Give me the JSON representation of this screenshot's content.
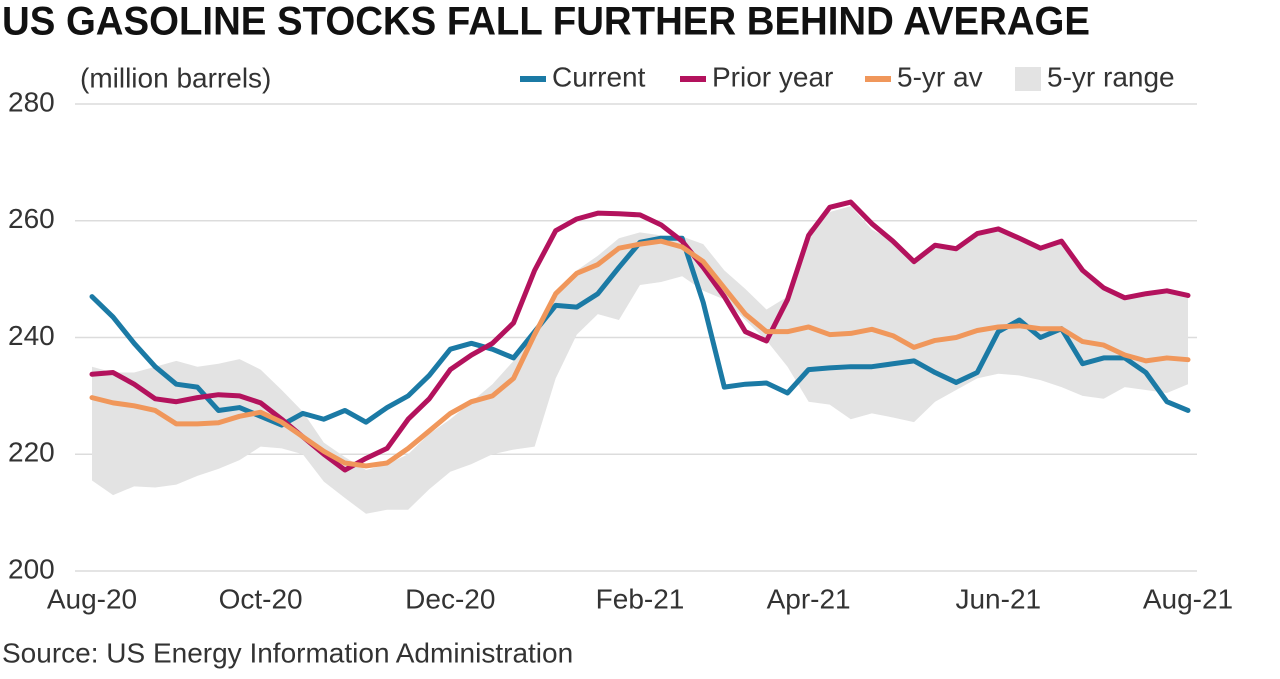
{
  "chart_data": {
    "type": "line",
    "title": "US GASOLINE STOCKS FALL FURTHER BEHIND AVERAGE",
    "y_label": "(million barrels)",
    "source": "Source: US Energy Information Administration",
    "categories": [
      "Aug-20",
      null,
      null,
      null,
      null,
      null,
      null,
      null,
      "Oct-20",
      null,
      null,
      null,
      null,
      null,
      null,
      null,
      null,
      "Dec-20",
      null,
      null,
      null,
      null,
      null,
      null,
      null,
      null,
      "Feb-21",
      null,
      null,
      null,
      null,
      null,
      null,
      null,
      "Apr-21",
      null,
      null,
      null,
      null,
      null,
      null,
      null,
      null,
      "Jun-21",
      null,
      null,
      null,
      null,
      null,
      null,
      null,
      null,
      "Aug-21"
    ],
    "ylim": [
      200,
      280
    ],
    "yticks": [
      200,
      220,
      240,
      260,
      280
    ],
    "grid": true,
    "legend": "top-right",
    "series": [
      {
        "name": "Current",
        "color": "#1b7aa5",
        "values": [
          247,
          243.5,
          239,
          235,
          232,
          231.5,
          227.5,
          228,
          226.5,
          225,
          227,
          226,
          227.5,
          225.5,
          228,
          230,
          233.5,
          238,
          239,
          238,
          236.5,
          241,
          245.5,
          245.2,
          247.5,
          252,
          256.3,
          257,
          257,
          246,
          231.5,
          232,
          232.2,
          230.5,
          234.5,
          234.8,
          235,
          235,
          235.5,
          236,
          234,
          232.3,
          234,
          241,
          243,
          240,
          241.5,
          235.5,
          236.5,
          236.5,
          234,
          229,
          227.5
        ]
      },
      {
        "name": "Prior year",
        "color": "#b3125d",
        "values": [
          233.7,
          234,
          232,
          229.5,
          229,
          229.7,
          230.2,
          230,
          228.8,
          226,
          223,
          220,
          217.3,
          219.3,
          221,
          226,
          229.5,
          234.5,
          237,
          239,
          242.5,
          251.5,
          258.3,
          260.3,
          261.3,
          261.2,
          261,
          259.3,
          256.5,
          252,
          247,
          241,
          239.4,
          246.5,
          257.5,
          262.3,
          263.2,
          259.5,
          256.5,
          253,
          255.8,
          255.2,
          257.8,
          258.6,
          257,
          255.3,
          256.5,
          251.5,
          248.5,
          246.8,
          247.5,
          248,
          247.2
        ]
      },
      {
        "name": "5-yr av",
        "color": "#f0975b",
        "values": [
          229.7,
          228.8,
          228.3,
          227.5,
          225.2,
          225.2,
          225.4,
          226.5,
          227.2,
          225.5,
          223,
          220.5,
          218.5,
          218,
          218.5,
          221,
          224,
          227,
          229,
          230,
          233,
          240.5,
          247.5,
          251,
          252.5,
          255.3,
          256,
          256.5,
          255.5,
          253,
          248.5,
          244,
          241,
          241,
          241.8,
          240.5,
          240.7,
          241.4,
          240.3,
          238.3,
          239.5,
          240,
          241.2,
          241.8,
          242,
          241.5,
          241.5,
          239.3,
          238.7,
          237,
          236,
          236.5,
          236.2
        ]
      },
      {
        "name": "5-yr range",
        "color": "#e3e3e3",
        "type": "range",
        "low": [
          215.5,
          213,
          214.5,
          214.3,
          214.8,
          216.3,
          217.5,
          219,
          221.3,
          221,
          220,
          215.3,
          212.5,
          209.8,
          210.5,
          210.5,
          214,
          217,
          218.3,
          220,
          220.8,
          221.3,
          233,
          240.5,
          244,
          243,
          249,
          249.5,
          250.5,
          248,
          246.5,
          243,
          239.5,
          235,
          229,
          228.5,
          226,
          227,
          226.3,
          225.5,
          229,
          231,
          233,
          233.8,
          233.5,
          232.7,
          231.5,
          230,
          229.5,
          231.5,
          231,
          230.5,
          232
        ],
        "high": [
          235,
          234,
          234,
          235,
          236,
          235,
          235.5,
          236.3,
          234.5,
          231,
          227.3,
          222,
          219.5,
          217.3,
          218.3,
          220,
          223.5,
          226,
          229,
          232,
          236,
          241.5,
          247.5,
          251.5,
          254,
          257,
          258,
          257.5,
          257.3,
          256,
          251.5,
          248.3,
          244.8,
          247,
          258.5,
          261.5,
          262.5,
          258.5,
          256.5,
          253,
          255.5,
          255,
          257.5,
          258.5,
          257,
          255.3,
          256.5,
          251.5,
          248.5,
          246.8,
          247.5,
          248,
          247.2
        ]
      }
    ]
  }
}
